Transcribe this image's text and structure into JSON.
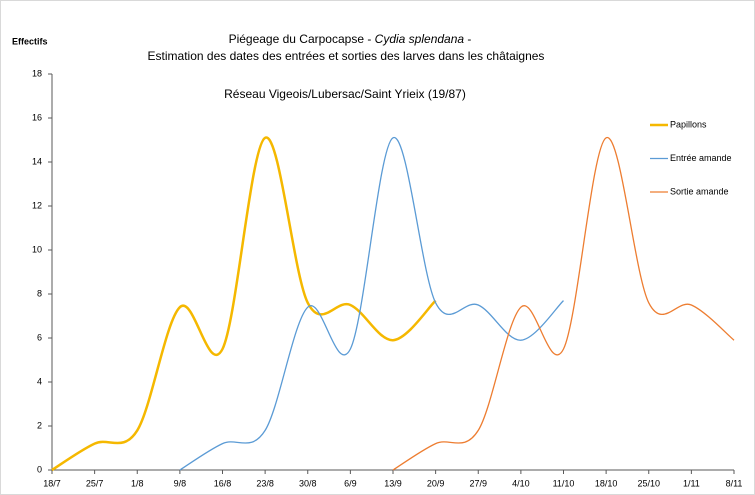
{
  "chart_data": {
    "type": "line",
    "y_label": "Effectifs",
    "title_start": "Piégeage du Carpocapse - ",
    "title_species": "Cydia splendana",
    "title_end": " -",
    "title_line2": "Estimation des dates des entrées et sorties des larves dans les châtaignes",
    "subtitle": "Réseau Vigeois/Lubersac/Saint Yrieix (19/87)",
    "categories": [
      "18/7",
      "25/7",
      "1/8",
      "9/8",
      "16/8",
      "23/8",
      "30/8",
      "6/9",
      "13/9",
      "20/9",
      "27/9",
      "4/10",
      "11/10",
      "18/10",
      "25/10",
      "1/11",
      "8/11"
    ],
    "series": [
      {
        "name": "Papillons",
        "color": "#f5b800",
        "width": 2.5,
        "values": [
          0,
          1.2,
          1.8,
          7.4,
          5.5,
          15.1,
          7.6,
          7.5,
          5.9,
          7.7,
          null,
          null,
          null,
          null,
          null,
          null,
          null
        ]
      },
      {
        "name": "Entrée amande",
        "color": "#5b9bd5",
        "width": 1.3,
        "values": [
          null,
          null,
          null,
          0,
          1.2,
          1.8,
          7.4,
          5.5,
          15.1,
          7.6,
          7.5,
          5.9,
          7.7,
          null,
          null,
          null,
          null
        ]
      },
      {
        "name": "Sortie amande",
        "color": "#ed7d31",
        "width": 1.3,
        "values": [
          null,
          null,
          null,
          null,
          null,
          null,
          null,
          null,
          0,
          1.2,
          1.8,
          7.4,
          5.5,
          15.1,
          7.6,
          7.5,
          5.9
        ]
      }
    ],
    "ylim": [
      0,
      18
    ],
    "yticks": [
      0,
      2,
      4,
      6,
      8,
      10,
      12,
      14,
      16,
      18
    ],
    "legend": "right"
  }
}
